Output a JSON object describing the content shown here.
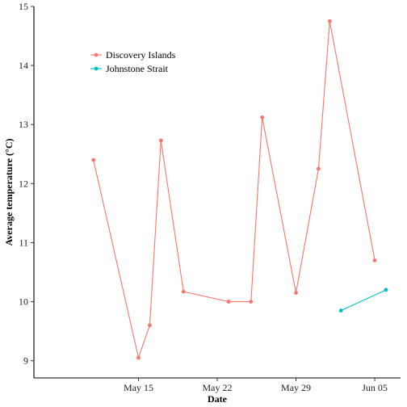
{
  "chart_data": {
    "type": "line",
    "xlabel": "Date",
    "ylabel": "Average temperature (°C)",
    "xlim": [
      "2015-05-07",
      "2015-06-06"
    ],
    "ylim": [
      8.9,
      15.0
    ],
    "x_ticks": [
      {
        "date": "2015-05-15",
        "label": "May 15"
      },
      {
        "date": "2015-05-22",
        "label": "May 22"
      },
      {
        "date": "2015-05-29",
        "label": "May 29"
      },
      {
        "date": "2015-06-05",
        "label": "Jun 05"
      }
    ],
    "y_ticks": [
      9,
      10,
      11,
      12,
      13,
      14,
      15
    ],
    "grid": false,
    "legend": "top-left",
    "series": [
      {
        "name": "Discovery Islands",
        "color": "#F8766D",
        "points": [
          {
            "x": "2015-05-11",
            "y": 12.4
          },
          {
            "x": "2015-05-15",
            "y": 9.05
          },
          {
            "x": "2015-05-16",
            "y": 9.6
          },
          {
            "x": "2015-05-17",
            "y": 12.73
          },
          {
            "x": "2015-05-19",
            "y": 10.17
          },
          {
            "x": "2015-05-23",
            "y": 10.0
          },
          {
            "x": "2015-05-25",
            "y": 10.0
          },
          {
            "x": "2015-05-26",
            "y": 13.12
          },
          {
            "x": "2015-05-29",
            "y": 10.15
          },
          {
            "x": "2015-05-31",
            "y": 12.25
          },
          {
            "x": "2015-06-01",
            "y": 14.75
          },
          {
            "x": "2015-06-05",
            "y": 10.7
          }
        ]
      },
      {
        "name": "Johnstone Strait",
        "color": "#00BFC4",
        "points": [
          {
            "x": "2015-06-02",
            "y": 9.85
          },
          {
            "x": "2015-06-06",
            "y": 10.2
          }
        ]
      }
    ]
  }
}
